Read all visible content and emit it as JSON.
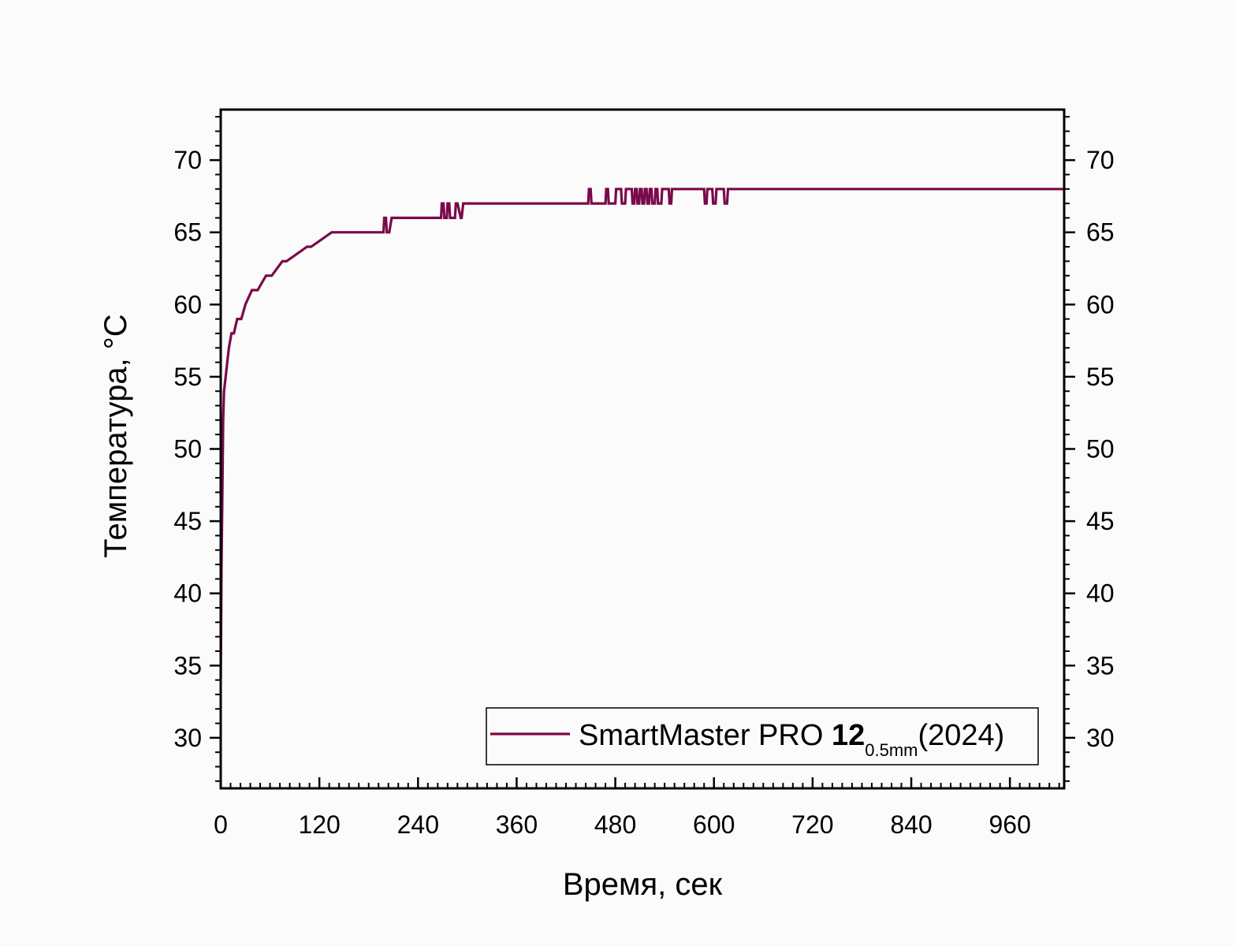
{
  "chart_data": {
    "type": "line",
    "xlabel": "Время, сек",
    "ylabel": "Температура, °С",
    "xlim": [
      0,
      1026
    ],
    "ylim": [
      26.5,
      73.5
    ],
    "x_ticks": [
      0,
      120,
      240,
      360,
      480,
      600,
      720,
      840,
      960
    ],
    "y_ticks": [
      30,
      35,
      40,
      45,
      50,
      55,
      60,
      65,
      70
    ],
    "y_ticks_right": true,
    "grid": false,
    "legend_position": "bottom-right",
    "colors": {
      "series": "#7a0a4a",
      "axis": "#000000",
      "background": "#fbfbfb"
    },
    "series": [
      {
        "name": "SmartMaster PRO 12 0.5mm (2024)",
        "legend": {
          "prefix": "SmartMaster PRO ",
          "bold": "12",
          "sub": "0.5mm",
          "suffix": "(2024)"
        },
        "x": [
          0,
          1,
          2,
          3,
          4,
          6,
          8,
          10,
          13,
          16,
          20,
          25,
          30,
          38,
          45,
          55,
          62,
          75,
          80,
          105,
          110,
          135,
          140,
          198,
          199,
          201,
          202,
          205,
          208,
          268,
          269,
          271,
          272,
          275,
          276,
          278,
          279,
          285,
          286,
          288,
          292,
          293,
          295,
          298,
          447,
          448,
          450,
          451,
          468,
          469,
          471,
          472,
          480,
          481,
          487,
          488,
          492,
          493,
          500,
          501,
          503,
          504,
          506,
          507,
          509,
          510,
          512,
          513,
          515,
          516,
          518,
          519,
          521,
          522,
          524,
          525,
          528,
          529,
          531,
          532,
          536,
          537,
          545,
          546,
          548,
          549,
          588,
          589,
          591,
          592,
          594,
          595,
          598,
          599,
          602,
          603,
          612,
          613,
          616,
          617,
          1026
        ],
        "y": [
          34,
          42,
          47,
          52,
          54,
          55,
          56,
          57,
          58,
          58,
          59,
          59,
          60,
          61,
          61,
          62,
          62,
          63,
          63,
          64,
          64,
          65,
          65,
          65,
          66,
          66,
          65,
          65,
          66,
          66,
          67,
          67,
          66,
          66,
          67,
          67,
          66,
          66,
          67,
          67,
          66,
          66,
          67,
          67,
          67,
          68,
          68,
          67,
          67,
          68,
          68,
          67,
          67,
          68,
          68,
          67,
          67,
          68,
          68,
          67,
          67,
          68,
          68,
          67,
          67,
          68,
          68,
          67,
          67,
          68,
          68,
          67,
          67,
          68,
          68,
          67,
          67,
          68,
          68,
          67,
          67,
          68,
          68,
          67,
          67,
          68,
          68,
          67,
          67,
          68,
          68,
          68,
          68,
          67,
          67,
          68,
          68,
          67,
          67,
          68,
          68
        ]
      }
    ]
  }
}
